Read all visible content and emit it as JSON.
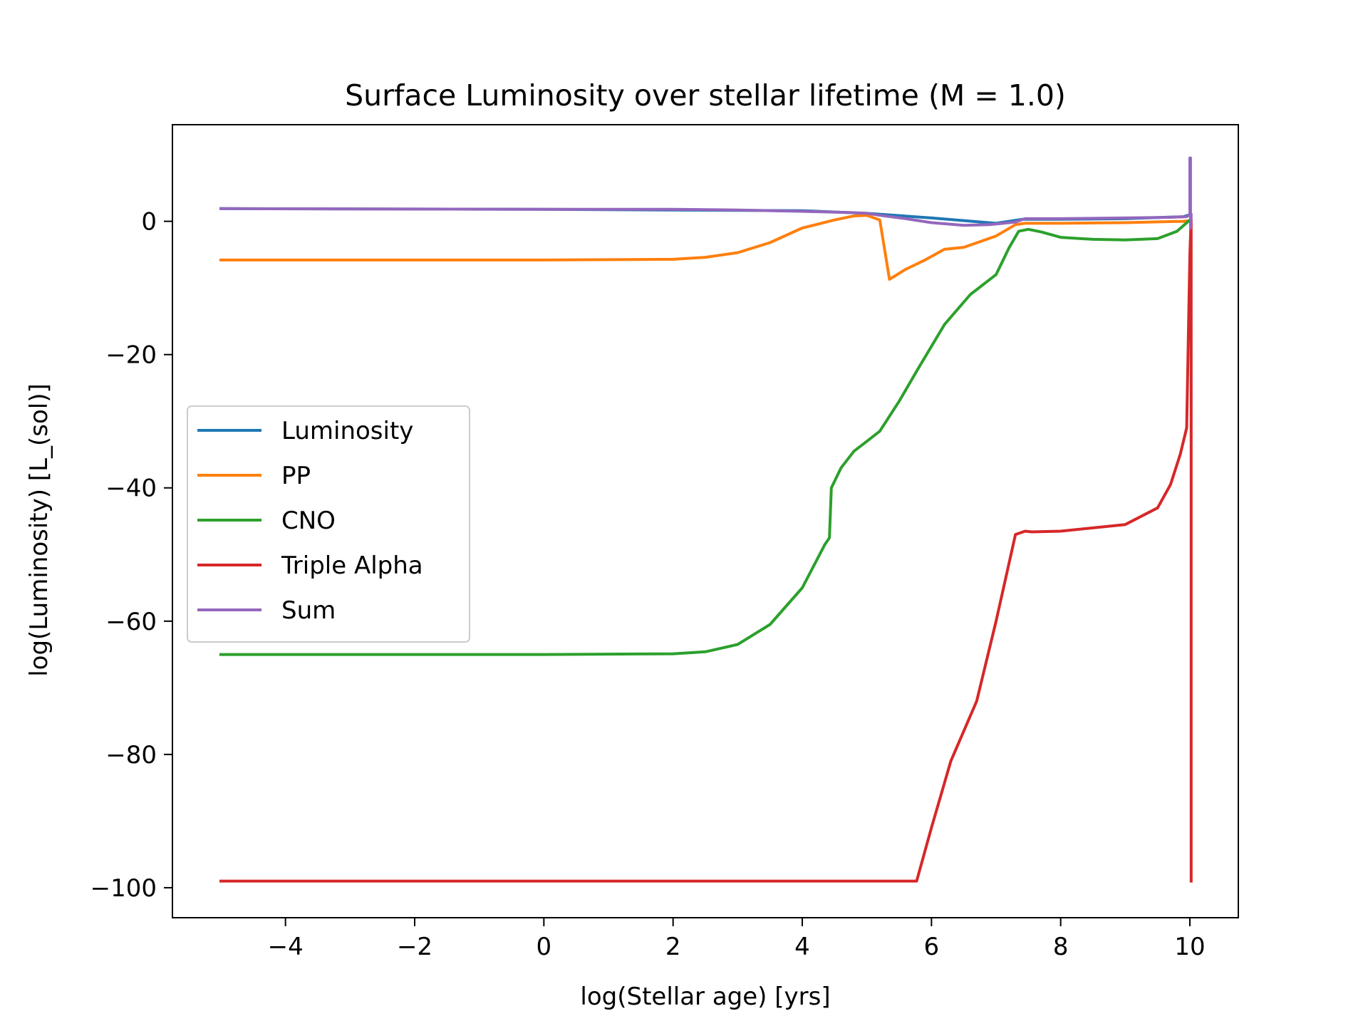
{
  "chart_data": {
    "type": "line",
    "title": "Surface Luminosity  over stellar lifetime (M = 1.0)",
    "xlabel": "log(Stellar age) [yrs]",
    "ylabel": "log(Luminosity) [L_(sol)]",
    "xlim": [
      -5.75,
      10.75
    ],
    "ylim": [
      -104.5,
      14.5
    ],
    "xticks": [
      -4,
      -2,
      0,
      2,
      4,
      6,
      8,
      10
    ],
    "xtick_labels": [
      "−4",
      "−2",
      "0",
      "2",
      "4",
      "6",
      "8",
      "10"
    ],
    "yticks": [
      0,
      -20,
      -40,
      -60,
      -80,
      -100
    ],
    "ytick_labels": [
      "0",
      "−20",
      "−40",
      "−60",
      "−80",
      "−100"
    ],
    "grid": false,
    "legend_position": "center-left",
    "series": [
      {
        "name": "Luminosity",
        "color": "#1f77b4",
        "x": [
          -5,
          0,
          4,
          5,
          6,
          7,
          7.4,
          8,
          9,
          9.9,
          10.0
        ],
        "y": [
          1.9,
          1.8,
          1.6,
          1.2,
          0.5,
          -0.3,
          0.3,
          0.3,
          0.4,
          0.7,
          1.0
        ]
      },
      {
        "name": "PP",
        "color": "#ff7f0e",
        "x": [
          -5,
          0,
          2,
          2.5,
          3,
          3.5,
          4,
          4.5,
          4.8,
          5.0,
          5.2,
          5.35,
          5.6,
          5.9,
          6.2,
          6.5,
          7.0,
          7.3,
          7.45,
          8,
          9,
          9.9,
          10.0
        ],
        "y": [
          -5.8,
          -5.8,
          -5.7,
          -5.4,
          -4.7,
          -3.2,
          -1.0,
          0.2,
          0.8,
          0.9,
          0.2,
          -8.7,
          -7.2,
          -5.8,
          -4.2,
          -3.9,
          -2.2,
          -0.5,
          -0.3,
          -0.3,
          -0.2,
          0.0,
          0.1
        ]
      },
      {
        "name": "CNO",
        "color": "#2ca02c",
        "x": [
          -5,
          0,
          2,
          2.5,
          3,
          3.5,
          4,
          4.35,
          4.42,
          4.45,
          4.6,
          4.8,
          5.0,
          5.2,
          5.5,
          5.8,
          6.2,
          6.6,
          7.0,
          7.2,
          7.35,
          7.5,
          7.7,
          8.0,
          8.5,
          9.0,
          9.5,
          9.8,
          10.0
        ],
        "y": [
          -65,
          -65,
          -64.9,
          -64.6,
          -63.5,
          -60.5,
          -55,
          -48.5,
          -47.5,
          -40,
          -37,
          -34.5,
          -33,
          -31.5,
          -27,
          -22,
          -15.5,
          -11,
          -8,
          -4,
          -1.5,
          -1.2,
          -1.6,
          -2.4,
          -2.7,
          -2.8,
          -2.6,
          -1.5,
          0.2
        ]
      },
      {
        "name": "Triple Alpha",
        "color": "#d62728",
        "x": [
          -5,
          0,
          5,
          5.77,
          6.0,
          6.3,
          6.7,
          7.0,
          7.3,
          7.45,
          7.55,
          8,
          9,
          9.5,
          9.7,
          9.85,
          9.95,
          10.0,
          10.02,
          10.02
        ],
        "y": [
          -99,
          -99,
          -99,
          -99,
          -91,
          -81,
          -72,
          -60,
          -47,
          -46.5,
          -46.6,
          -46.5,
          -45.5,
          -43,
          -39.5,
          -35,
          -31,
          -5,
          0.5,
          -99
        ]
      },
      {
        "name": "Sum",
        "color": "#9467bd",
        "x": [
          -5,
          0,
          2,
          3,
          4,
          4.8,
          5.0,
          5.2,
          5.6,
          6.0,
          6.5,
          6.9,
          7.3,
          7.45,
          8,
          9,
          9.7,
          9.95,
          10.0,
          10.0,
          10.01,
          10.01,
          10.02
        ],
        "y": [
          1.9,
          1.8,
          1.8,
          1.7,
          1.5,
          1.3,
          1.2,
          0.9,
          0.4,
          -0.2,
          -0.6,
          -0.5,
          -0.1,
          0.4,
          0.4,
          0.5,
          0.6,
          0.7,
          1.0,
          9.5,
          9.5,
          -1.0,
          1.0
        ]
      }
    ]
  }
}
